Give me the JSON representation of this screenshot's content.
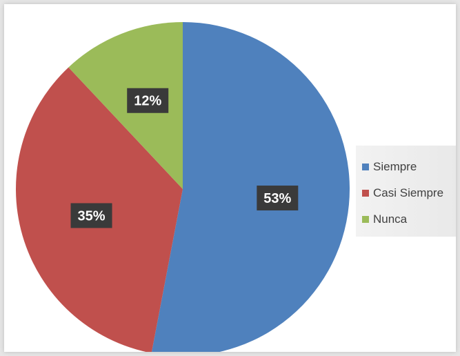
{
  "chart_data": {
    "type": "pie",
    "title": "",
    "slices": [
      {
        "label": "Siempre",
        "value": 53,
        "display": "53%",
        "color": "#4f81bd"
      },
      {
        "label": "Casi Siempre",
        "value": 35,
        "display": "35%",
        "color": "#c0504d"
      },
      {
        "label": "Nunca",
        "value": 12,
        "display": "12%",
        "color": "#9bbb59"
      }
    ],
    "legend_position": "right",
    "data_label_style": "dark box, white bold text"
  }
}
